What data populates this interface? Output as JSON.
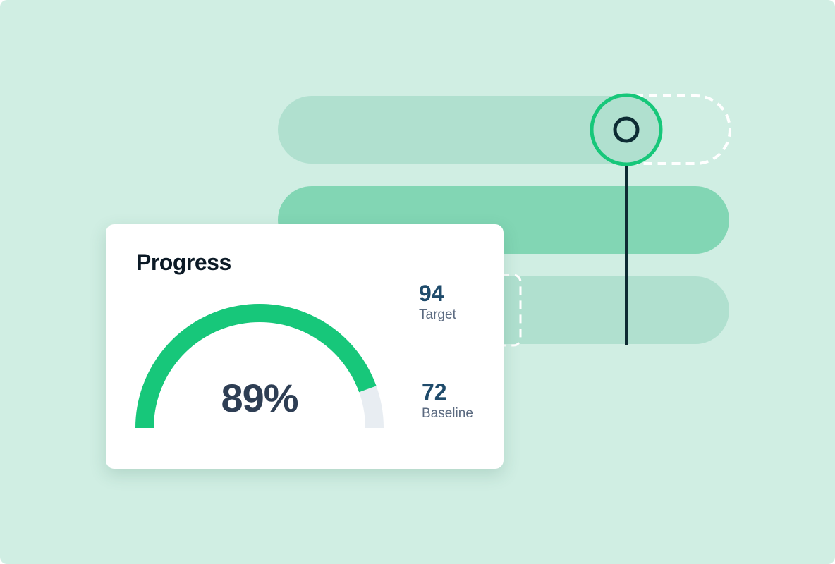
{
  "colors": {
    "background": "#d0eee3",
    "bar_light": "#b0e0cf",
    "bar_medium": "#82d6b4",
    "accent": "#17c77a",
    "line": "#0d2b33",
    "gauge_track": "#e8edf2"
  },
  "icons": [
    "ring-handle-icon"
  ],
  "slider": {
    "value_fraction": 0.77
  },
  "card": {
    "title": "Progress",
    "gauge": {
      "value_label": "89%",
      "value": 89,
      "max": 100
    },
    "stats": [
      {
        "value": "94",
        "label": "Target"
      },
      {
        "value": "72",
        "label": "Baseline"
      }
    ]
  }
}
